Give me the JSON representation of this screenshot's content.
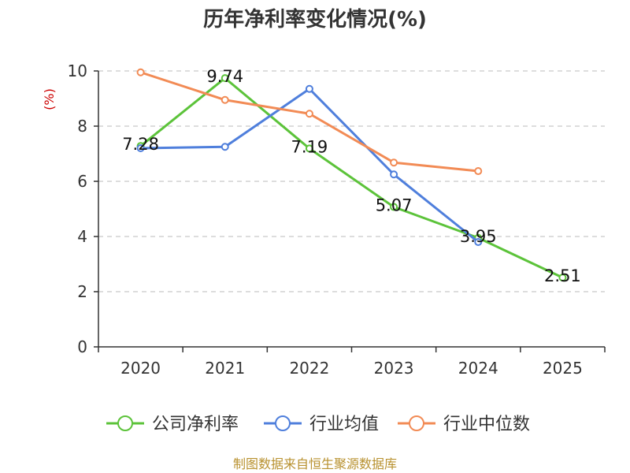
{
  "chart_data": {
    "type": "line",
    "title": "历年净利率变化情况(%)",
    "ylabel": "(%)",
    "xlabel": "",
    "ylim": [
      0,
      10
    ],
    "yticks": [
      0,
      2,
      4,
      6,
      8,
      10
    ],
    "categories": [
      "2020",
      "2021",
      "2022",
      "2023",
      "2024",
      "2025"
    ],
    "grid": true,
    "legend_position": "bottom",
    "series": [
      {
        "name": "公司净利率",
        "color": "#5cc33a",
        "values": [
          7.28,
          9.74,
          7.19,
          5.07,
          3.95,
          2.51
        ],
        "labels": [
          "7.28",
          "9.74",
          "7.19",
          "5.07",
          "3.95",
          "2.51"
        ]
      },
      {
        "name": "行业均值",
        "color": "#4f7fdc",
        "values": [
          7.2,
          7.25,
          9.35,
          6.25,
          3.8,
          null
        ]
      },
      {
        "name": "行业中位数",
        "color": "#f28b55",
        "values": [
          9.95,
          8.95,
          8.45,
          6.68,
          6.37,
          null
        ]
      }
    ]
  },
  "source": "制图数据来自恒生聚源数据库"
}
